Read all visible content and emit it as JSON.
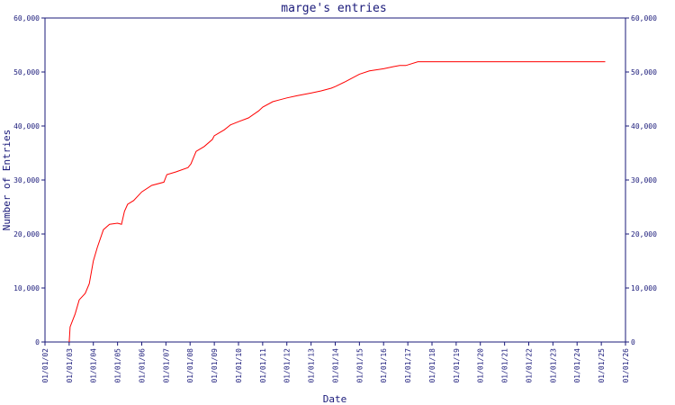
{
  "chart_data": {
    "type": "line",
    "title": "marge's entries",
    "xlabel": "Date",
    "ylabel": "Number of Entries",
    "ylim": [
      0,
      60000
    ],
    "xlim": [
      "2002-01-01",
      "2026-01-01"
    ],
    "y_ticks": [
      0,
      10000,
      20000,
      30000,
      40000,
      50000,
      60000
    ],
    "y_tick_labels": [
      "0",
      "10,000",
      "20,000",
      "30,000",
      "40,000",
      "50,000",
      "60,000"
    ],
    "x_ticks": [
      "2002-01-01",
      "2003-01-01",
      "2004-01-01",
      "2005-01-01",
      "2006-01-01",
      "2007-01-01",
      "2008-01-01",
      "2009-01-01",
      "2010-01-01",
      "2011-01-01",
      "2012-01-01",
      "2013-01-01",
      "2014-01-01",
      "2015-01-01",
      "2016-01-01",
      "2017-01-01",
      "2018-01-01",
      "2019-01-01",
      "2020-01-01",
      "2021-01-01",
      "2022-01-01",
      "2023-01-01",
      "2024-01-01",
      "2025-01-01",
      "2026-01-01"
    ],
    "x_tick_labels": [
      "01/01/02",
      "01/01/03",
      "01/01/04",
      "01/01/05",
      "01/01/06",
      "01/01/07",
      "01/01/08",
      "01/01/09",
      "01/01/10",
      "01/01/11",
      "01/01/12",
      "01/01/13",
      "01/01/14",
      "01/01/15",
      "01/01/16",
      "01/01/17",
      "01/01/18",
      "01/01/19",
      "01/01/20",
      "01/01/21",
      "01/01/22",
      "01/01/23",
      "01/01/24",
      "01/01/25",
      "01/01/26"
    ],
    "grid": false,
    "colors": {
      "line": "#ff0000",
      "axis": "#1a1a7a",
      "text": "#1a1a7a"
    },
    "series": [
      {
        "x": [
          "2003-01-01",
          "2003-01-15",
          "2003-04-01",
          "2003-06-01",
          "2003-09-01",
          "2003-11-01",
          "2004-01-01",
          "2004-03-01",
          "2004-06-01",
          "2004-09-01",
          "2005-01-01",
          "2005-03-01",
          "2005-04-15",
          "2005-06-01",
          "2005-09-01",
          "2006-01-01",
          "2006-06-01",
          "2006-12-01",
          "2007-01-15",
          "2007-06-01",
          "2007-12-01",
          "2008-01-15",
          "2008-04-01",
          "2008-08-01",
          "2008-12-01",
          "2009-01-01",
          "2009-06-01",
          "2009-09-01",
          "2010-01-01",
          "2010-06-01",
          "2010-11-01",
          "2011-01-01",
          "2011-06-01",
          "2011-09-01",
          "2012-01-01",
          "2012-06-01",
          "2013-01-01",
          "2013-06-01",
          "2013-11-01",
          "2014-01-01",
          "2014-06-01",
          "2015-01-01",
          "2015-06-01",
          "2016-01-01",
          "2016-06-01",
          "2016-09-01",
          "2016-12-01",
          "2017-06-01",
          "2018-01-01",
          "2020-01-01",
          "2022-01-01",
          "2024-01-01",
          "2025-01-01",
          "2025-03-01"
        ],
        "y": [
          0,
          2800,
          5200,
          7800,
          9000,
          10800,
          15000,
          17500,
          20800,
          21800,
          22000,
          21800,
          24200,
          25500,
          26200,
          27800,
          29000,
          29600,
          31000,
          31500,
          32300,
          33000,
          35300,
          36200,
          37500,
          38200,
          39300,
          40200,
          40800,
          41500,
          42800,
          43500,
          44500,
          44800,
          45200,
          45600,
          46100,
          46500,
          47000,
          47300,
          48200,
          49600,
          50200,
          50600,
          51000,
          51200,
          51200,
          51900,
          51900,
          51900,
          51900,
          51900,
          51900,
          51900
        ]
      }
    ]
  }
}
